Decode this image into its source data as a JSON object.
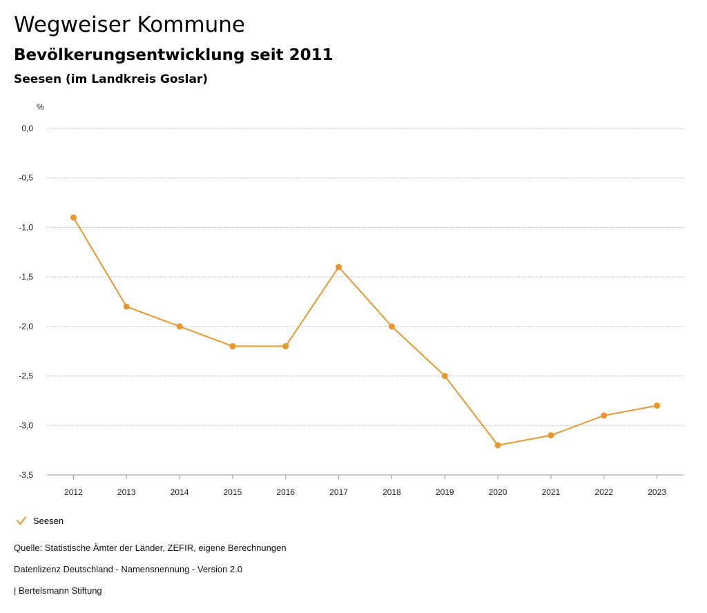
{
  "header": {
    "title": "Wegweiser Kommune",
    "subtitle": "Bevölkerungsentwicklung seit 2011",
    "region": "Seesen (im Landkreis Goslar)"
  },
  "chart_data": {
    "type": "line",
    "title": "Bevölkerungsentwicklung seit 2011",
    "ylabel": "%",
    "xlabel": "",
    "categories": [
      "2012",
      "2013",
      "2014",
      "2015",
      "2016",
      "2017",
      "2018",
      "2019",
      "2020",
      "2021",
      "2022",
      "2023"
    ],
    "series": [
      {
        "name": "Seesen",
        "color": "#E8962E",
        "values": [
          -0.9,
          -1.8,
          -2.0,
          -2.2,
          -2.2,
          -1.4,
          -2.0,
          -2.5,
          -3.2,
          -3.1,
          -2.9,
          -2.8
        ]
      }
    ],
    "ylim": [
      -3.5,
      0.0
    ],
    "yticks": [
      0.0,
      -0.5,
      -1.0,
      -1.5,
      -2.0,
      -2.5,
      -3.0,
      -3.5
    ],
    "ytick_labels": [
      "0,0",
      "-0,5",
      "-1,0",
      "-1,5",
      "-2,0",
      "-2,5",
      "-3,0",
      "-3,5"
    ],
    "grid": true,
    "legend_position": "bottom-left"
  },
  "legend": {
    "label": "Seesen",
    "color": "#E8962E"
  },
  "footer": {
    "source": "Quelle: Statistische Ämter der Länder, ZEFIR, eigene Berechnungen",
    "license": "Datenlizenz Deutschland - Namensnennung - Version 2.0",
    "publisher": "| Bertelsmann Stiftung"
  }
}
